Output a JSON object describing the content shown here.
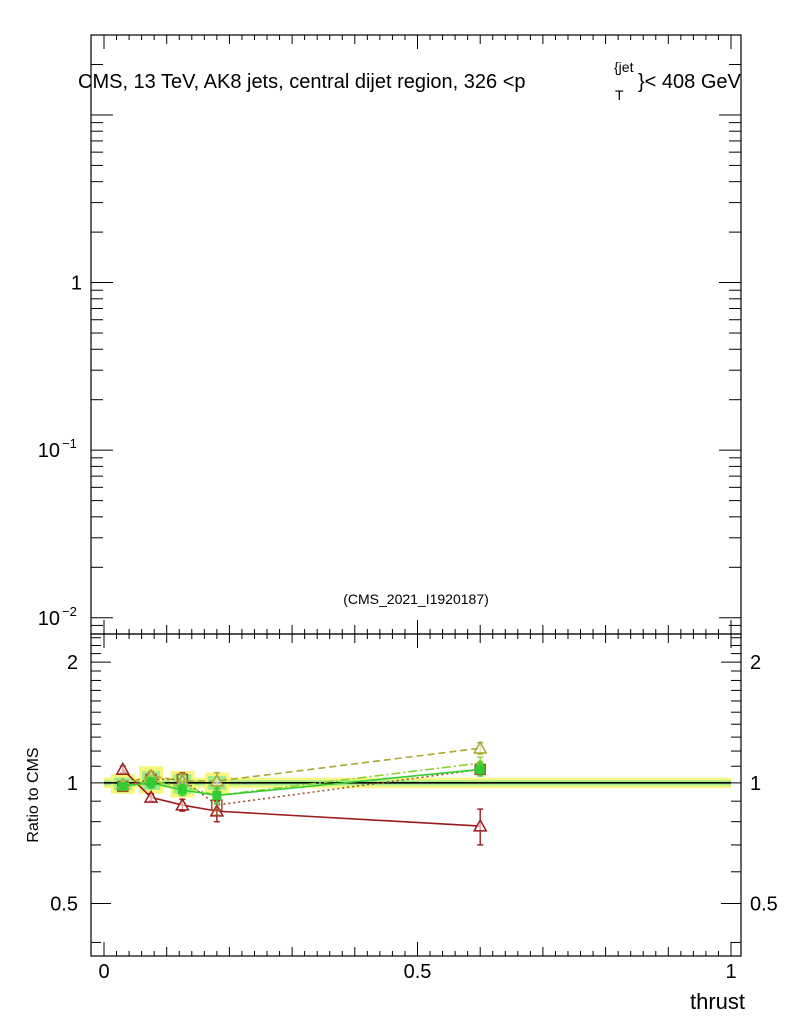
{
  "chart_data": {
    "type": "scatter",
    "title": "CMS, 13 TeV, AK8 jets, central dijet region, 326 <p",
    "title_sup": "{jet",
    "title_sub": "T",
    "title_suffix": "}< 408 GeV",
    "analysis_label": "(CMS_2021_I1920187)",
    "xlabel": "thrust",
    "xlim": [
      0,
      1
    ],
    "x_ticks": [
      {
        "value": 0,
        "label": "0"
      },
      {
        "value": 0.5,
        "label": "0.5"
      },
      {
        "value": 1,
        "label": "1"
      }
    ],
    "upper": {
      "yscale": "log",
      "ylim": [
        0.008,
        30
      ],
      "y_ticks": [
        {
          "value": 0.01,
          "base": "10",
          "exp": "−2"
        },
        {
          "value": 0.1,
          "base": "10",
          "exp": "−1"
        },
        {
          "value": 1,
          "base": "1",
          "exp": ""
        }
      ]
    },
    "lower": {
      "ylabel": "Ratio to CMS",
      "yscale": "log",
      "ylim": [
        0.37,
        2.35
      ],
      "y_ticks": [
        {
          "value": 0.5,
          "label": "0.5"
        },
        {
          "value": 1,
          "label": "1"
        },
        {
          "value": 2,
          "label": "2"
        }
      ],
      "reference": {
        "name": "CMS",
        "color": "#000000",
        "x": [
          0,
          1
        ],
        "band_inner": [
          0.985,
          1.015
        ],
        "band_outer": [
          0.97,
          1.03
        ]
      },
      "bins": [
        {
          "x": 0.03,
          "inner": [
            0.96,
            1.03
          ],
          "outer": [
            0.94,
            1.05
          ]
        },
        {
          "x": 0.075,
          "inner": [
            0.96,
            1.07
          ],
          "outer": [
            0.94,
            1.1
          ]
        },
        {
          "x": 0.125,
          "inner": [
            0.94,
            1.05
          ],
          "outer": [
            0.92,
            1.07
          ]
        },
        {
          "x": 0.18,
          "inner": [
            0.96,
            1.04
          ],
          "outer": [
            0.94,
            1.06
          ]
        }
      ],
      "series": [
        {
          "name": "series-dark-red",
          "color": "#9e1b1b",
          "dash": "",
          "marker": "triangle-open",
          "x": [
            0.03,
            0.075,
            0.125,
            0.18,
            0.6
          ],
          "y": [
            1.08,
            0.92,
            0.88,
            0.85,
            0.78
          ],
          "err": [
            0.02,
            0.02,
            0.03,
            0.05,
            0.08
          ]
        },
        {
          "name": "series-brown-dotted",
          "color": "#a0522d",
          "dash": "2,3",
          "marker": "square-open",
          "x": [
            0.03,
            0.075,
            0.125,
            0.18,
            0.6
          ],
          "y": [
            0.98,
            1.02,
            1.02,
            0.88,
            1.08
          ],
          "err": [
            0.02,
            0.04,
            0.04,
            0.05,
            0.03
          ]
        },
        {
          "name": "series-olive-dashed",
          "color": "#a8a832",
          "dash": "7,4",
          "marker": "triangle-open",
          "x": [
            0.03,
            0.075,
            0.125,
            0.18,
            0.6
          ],
          "y": [
            0.99,
            1.04,
            1.01,
            1.01,
            1.22
          ],
          "err": [
            0.02,
            0.03,
            0.04,
            0.05,
            0.04
          ]
        },
        {
          "name": "series-lime-dashdot",
          "color": "#8bd32e",
          "dash": "9,3,2,3",
          "marker": "dot",
          "x": [
            0.03,
            0.075,
            0.125,
            0.18,
            0.6
          ],
          "y": [
            0.98,
            1.01,
            0.98,
            0.93,
            1.12
          ],
          "err": [
            0.02,
            0.03,
            0.03,
            0.04,
            0.04
          ]
        },
        {
          "name": "series-green-solid",
          "color": "#33cc33",
          "dash": "",
          "marker": "square-filled",
          "x": [
            0.03,
            0.075,
            0.125,
            0.18,
            0.6
          ],
          "y": [
            0.98,
            1.0,
            0.96,
            0.93,
            1.08
          ],
          "err": [
            0.02,
            0.03,
            0.03,
            0.04,
            0.04
          ]
        }
      ]
    }
  }
}
